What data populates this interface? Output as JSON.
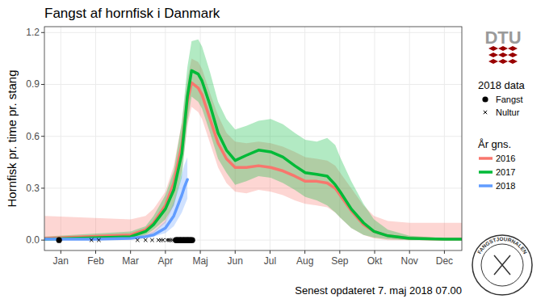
{
  "chart_data": {
    "type": "line",
    "title": "Fangst af hornfisk i Danmark",
    "y_label": "Hornfisk pr. time pr. stang",
    "caption": "Senest opdateret 7. maj 2018 07.00",
    "annotations": [
      "DTU",
      "FANGSTJOURNALEN"
    ],
    "points_legend_title": "2018 data",
    "lines_legend_title": "År gns.",
    "legend": "right",
    "grid": true,
    "xlim": [
      0.53,
      12.5
    ],
    "xticks": [
      {
        "value": 1,
        "label": "Jan"
      },
      {
        "value": 2,
        "label": "Feb"
      },
      {
        "value": 3,
        "label": "Mar"
      },
      {
        "value": 4,
        "label": "Apr"
      },
      {
        "value": 5,
        "label": "Maj"
      },
      {
        "value": 6,
        "label": "Jun"
      },
      {
        "value": 7,
        "label": "Jul"
      },
      {
        "value": 8,
        "label": "Aug"
      },
      {
        "value": 9,
        "label": "Sep"
      },
      {
        "value": 10,
        "label": "Okt"
      },
      {
        "value": 11,
        "label": "Nov"
      },
      {
        "value": 12,
        "label": "Dec"
      }
    ],
    "ylim": [
      -0.06,
      1.234
    ],
    "yticks": [
      {
        "value": 0,
        "label": "0.0"
      },
      0.3,
      0.6,
      0.9,
      1.2
    ],
    "series": [
      {
        "name": "2016",
        "type": "line",
        "color": "#f8766d",
        "x": [
          0.54,
          3,
          3.43,
          3.66,
          4,
          4.24,
          4.47,
          4.63,
          4.75,
          4.94,
          5.05,
          5.28,
          5.51,
          5.75,
          6,
          6.32,
          6.67,
          7.02,
          7.37,
          7.71,
          8.01,
          8.34,
          8.64,
          8.87,
          9.01,
          9.33,
          9.68,
          9.98,
          10.38,
          11,
          12,
          12.5
        ],
        "values": [
          0.01,
          0.03,
          0.06,
          0.1,
          0.2,
          0.33,
          0.55,
          0.8,
          0.91,
          0.88,
          0.84,
          0.7,
          0.56,
          0.47,
          0.42,
          0.42,
          0.43,
          0.42,
          0.4,
          0.37,
          0.34,
          0.34,
          0.33,
          0.3,
          0.26,
          0.17,
          0.09,
          0.05,
          0.025,
          0.01,
          0.005,
          0.005
        ],
        "upper": [
          0.14,
          0.12,
          0.14,
          0.18,
          0.28,
          0.43,
          0.68,
          0.93,
          1.05,
          1.03,
          0.99,
          0.85,
          0.72,
          0.62,
          0.57,
          0.56,
          0.57,
          0.56,
          0.54,
          0.51,
          0.48,
          0.47,
          0.46,
          0.43,
          0.39,
          0.3,
          0.2,
          0.14,
          0.11,
          0.1,
          0.1,
          0.1
        ],
        "lower": [
          0,
          0.005,
          0.02,
          0.04,
          0.1,
          0.2,
          0.4,
          0.66,
          0.77,
          0.74,
          0.7,
          0.56,
          0.42,
          0.33,
          0.28,
          0.27,
          0.29,
          0.28,
          0.26,
          0.23,
          0.21,
          0.2,
          0.19,
          0.16,
          0.13,
          0.07,
          0.03,
          0.01,
          0,
          0,
          0,
          0
        ]
      },
      {
        "name": "2017",
        "type": "line",
        "color": "#00ba38",
        "x": [
          0.54,
          3,
          3.43,
          3.66,
          4,
          4.24,
          4.47,
          4.63,
          4.75,
          4.94,
          5.05,
          5.28,
          5.51,
          5.75,
          6,
          6.32,
          6.67,
          7.02,
          7.37,
          7.71,
          8.01,
          8.34,
          8.64,
          8.87,
          9.01,
          9.33,
          9.68,
          9.98,
          10.38,
          11,
          12,
          12.5
        ],
        "values": [
          0.005,
          0.02,
          0.05,
          0.09,
          0.18,
          0.29,
          0.5,
          0.83,
          0.98,
          0.96,
          0.92,
          0.78,
          0.62,
          0.52,
          0.46,
          0.49,
          0.52,
          0.51,
          0.48,
          0.43,
          0.39,
          0.38,
          0.37,
          0.32,
          0.28,
          0.18,
          0.1,
          0.05,
          0.025,
          0.01,
          0.005,
          0.005
        ],
        "upper": [
          0.02,
          0.05,
          0.08,
          0.14,
          0.26,
          0.4,
          0.68,
          1.0,
          1.15,
          1.16,
          1.12,
          0.97,
          0.8,
          0.7,
          0.64,
          0.66,
          0.69,
          0.7,
          0.67,
          0.62,
          0.58,
          0.57,
          0.59,
          0.55,
          0.48,
          0.34,
          0.21,
          0.12,
          0.06,
          0.025,
          0.01,
          0.01
        ],
        "lower": [
          0,
          0.005,
          0.03,
          0.06,
          0.12,
          0.2,
          0.36,
          0.68,
          0.83,
          0.8,
          0.76,
          0.62,
          0.47,
          0.39,
          0.32,
          0.34,
          0.37,
          0.36,
          0.33,
          0.29,
          0.25,
          0.23,
          0.2,
          0.16,
          0.13,
          0.07,
          0.03,
          0.015,
          0.005,
          0,
          0,
          0
        ]
      },
      {
        "name": "2018",
        "type": "line",
        "color": "#619cff",
        "x": [
          0.54,
          1,
          2,
          3,
          3.43,
          3.66,
          4,
          4.24,
          4.47,
          4.55,
          4.63
        ],
        "values": [
          0.005,
          0.005,
          0.005,
          0.01,
          0.02,
          0.03,
          0.07,
          0.14,
          0.26,
          0.31,
          0.35
        ],
        "upper": [
          0.015,
          0.015,
          0.015,
          0.02,
          0.03,
          0.05,
          0.11,
          0.22,
          0.38,
          0.44,
          0.48
        ],
        "lower": [
          0,
          0,
          0,
          0.005,
          0.01,
          0.02,
          0.04,
          0.08,
          0.16,
          0.2,
          0.24
        ]
      },
      {
        "name": "Fangst",
        "type": "scatter",
        "marker": "circle",
        "color": "#000000",
        "x": [
          0.95,
          4.3,
          4.33,
          4.36,
          4.4,
          4.43,
          4.46,
          4.5,
          4.53,
          4.56,
          4.6,
          4.63,
          4.66,
          4.7,
          4.73,
          4.77
        ],
        "values": [
          0,
          0,
          0,
          0,
          0,
          0,
          0,
          0,
          0,
          0,
          0,
          0,
          0,
          0,
          0,
          0
        ]
      },
      {
        "name": "Nultur",
        "type": "scatter",
        "marker": "x",
        "color": "#000000",
        "x": [
          1.88,
          2.09,
          3.2,
          3.43,
          3.62,
          3.8,
          3.87,
          3.93,
          4.05,
          4.1,
          4.15,
          4.2
        ],
        "values": [
          0,
          0,
          0,
          0,
          0,
          0,
          0,
          0,
          0,
          0,
          0,
          0
        ]
      }
    ]
  }
}
